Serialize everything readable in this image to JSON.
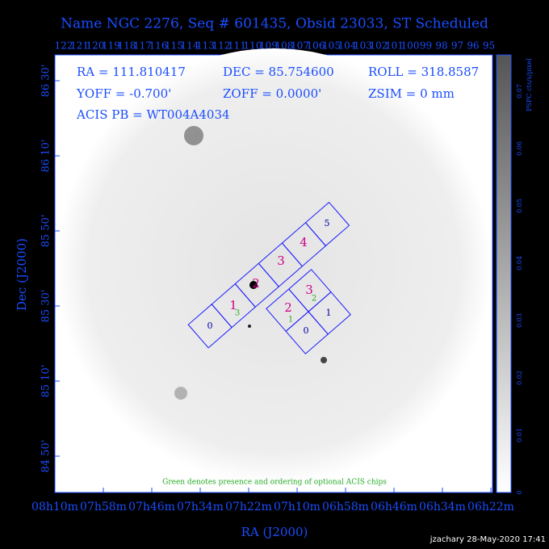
{
  "header": {
    "title": "Name NGC 2276, Seq # 601435, Obsid 23033, ST Scheduled"
  },
  "top_ticks": [
    "122",
    "121",
    "120",
    "119",
    "118",
    "117",
    "116",
    "115",
    "114",
    "113",
    "112",
    "111",
    "110",
    "109",
    "108",
    "107",
    "106",
    "105",
    "104",
    "103",
    "102",
    "101",
    "100",
    "99",
    "98",
    "97",
    "96",
    "95"
  ],
  "info": {
    "ra": "RA = 111.810417",
    "dec": "DEC = 85.754600",
    "roll": "ROLL = 318.8587",
    "yoff": "YOFF = -0.700'",
    "zoff": "ZOFF = 0.0000'",
    "zsim": "ZSIM = 0 mm",
    "acis": "ACIS PB = WT004A4034"
  },
  "y_axis": {
    "label": "Dec (J2000)",
    "ticks": [
      "86 30'",
      "86 10'",
      "85 50'",
      "85 30'",
      "85 10'",
      "84 50'"
    ]
  },
  "x_axis": {
    "label": "RA (J2000)",
    "ticks": [
      "08h10m",
      "07h58m",
      "07h46m",
      "07h34m",
      "07h22m",
      "07h10m",
      "06h58m",
      "06h46m",
      "06h34m",
      "06h22m"
    ]
  },
  "colorbar": {
    "label": "PSPC cts/s/pixel",
    "ticks": [
      "0",
      "0.01",
      "0.02",
      "0.03",
      "0.04",
      "0.05",
      "0.06",
      "0.07"
    ]
  },
  "chips": {
    "s_array": [
      "0",
      "1",
      "2",
      "3",
      "4",
      "5"
    ],
    "i_array": [
      "0",
      "1",
      "2",
      "3"
    ],
    "s_optional": [
      "1",
      "2",
      "3"
    ],
    "i_optional": [
      "1",
      "2",
      "3"
    ],
    "optional_green": [
      "3",
      "1",
      "2"
    ]
  },
  "note": "Green denotes presence and ordering of optional ACIS chips",
  "footer": "jzachary 28-May-2020 17:41"
}
